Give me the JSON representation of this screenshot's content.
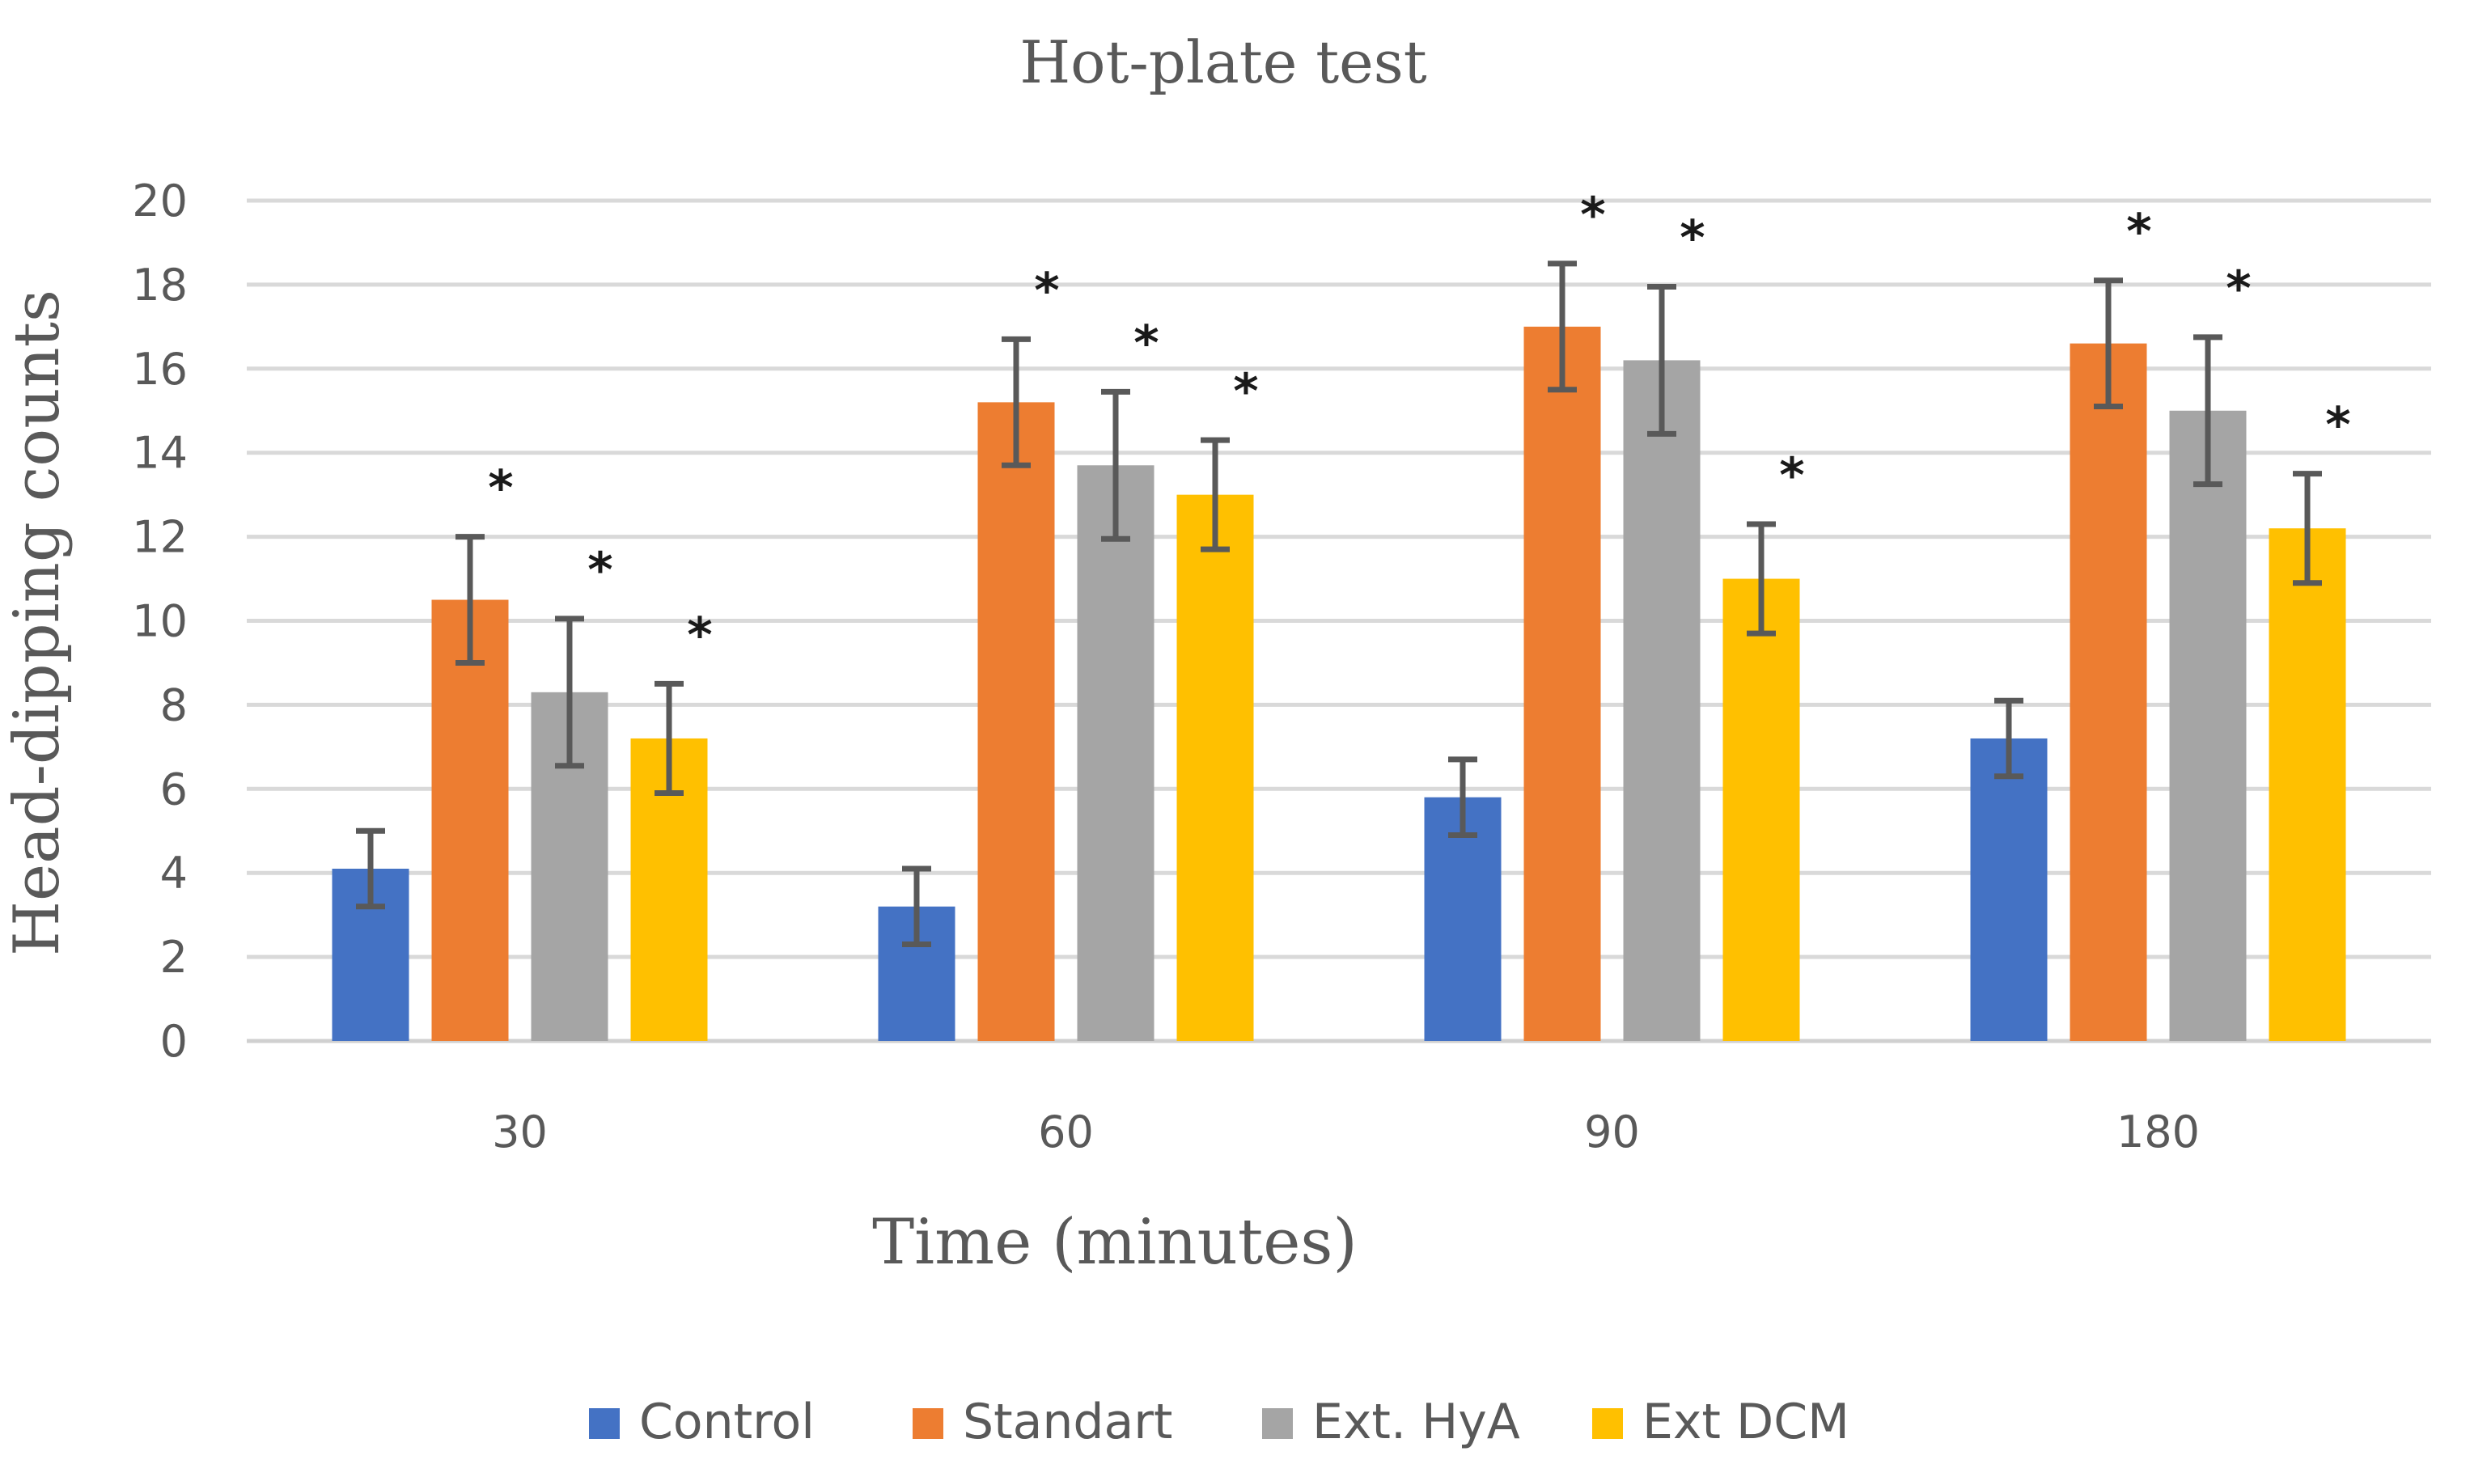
{
  "chart_data": {
    "type": "bar",
    "title": "Hot-plate test",
    "xlabel": "Time (minutes)",
    "ylabel": "Head-dipping counts",
    "categories": [
      "30",
      "60",
      "90",
      "180"
    ],
    "ylim": [
      0,
      20
    ],
    "yticks": [
      0,
      2,
      4,
      6,
      8,
      10,
      12,
      14,
      16,
      18,
      20
    ],
    "grid": true,
    "legend_position": "bottom",
    "significance_marker": "*",
    "series": [
      {
        "name": "Control",
        "color": "#4472C4",
        "values": [
          4.1,
          3.2,
          5.8,
          7.2
        ],
        "errors": [
          0.9,
          0.9,
          0.9,
          0.9
        ],
        "significant": [
          false,
          false,
          false,
          false
        ]
      },
      {
        "name": "Standart",
        "color": "#ED7D31",
        "values": [
          10.5,
          15.2,
          17.0,
          16.6
        ],
        "errors": [
          1.5,
          1.5,
          1.5,
          1.5
        ],
        "significant": [
          true,
          true,
          true,
          true
        ]
      },
      {
        "name": "Ext. HyA",
        "color": "#A5A5A5",
        "values": [
          8.3,
          13.7,
          16.2,
          15.0
        ],
        "errors": [
          1.75,
          1.75,
          1.75,
          1.75
        ],
        "significant": [
          true,
          true,
          true,
          true
        ]
      },
      {
        "name": "Ext DCM",
        "color": "#FFC000",
        "values": [
          7.2,
          13.0,
          11.0,
          12.2
        ],
        "errors": [
          1.3,
          1.3,
          1.3,
          1.3
        ],
        "significant": [
          true,
          true,
          true,
          true
        ]
      }
    ]
  }
}
